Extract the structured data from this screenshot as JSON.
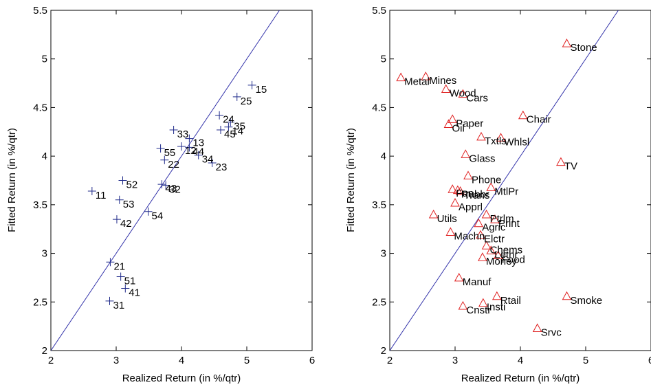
{
  "chart_data": [
    {
      "type": "scatter",
      "xlabel": "Realized Return (in %/qtr)",
      "ylabel": "Fitted Return (in %/qtr)",
      "xlim": [
        2,
        6
      ],
      "ylim": [
        2,
        5.5
      ],
      "xticks": [
        "2",
        "3",
        "4",
        "5",
        "6"
      ],
      "yticks": [
        "2",
        "2.5",
        "3",
        "3.5",
        "4",
        "4.5",
        "5",
        "5.5"
      ],
      "reference_line": "y = x",
      "marker": "plus",
      "marker_color": "#1f2a8a",
      "line_color": "#3333aa",
      "points": [
        {
          "label": "15",
          "x": 5.08,
          "y": 4.73
        },
        {
          "label": "25",
          "x": 4.85,
          "y": 4.61
        },
        {
          "label": "24",
          "x": 4.58,
          "y": 4.42
        },
        {
          "label": "35",
          "x": 4.75,
          "y": 4.35
        },
        {
          "label": "14",
          "x": 4.72,
          "y": 4.3
        },
        {
          "label": "45",
          "x": 4.6,
          "y": 4.27
        },
        {
          "label": "33",
          "x": 3.88,
          "y": 4.27
        },
        {
          "label": "13",
          "x": 4.12,
          "y": 4.18
        },
        {
          "label": "12",
          "x": 4.0,
          "y": 4.1
        },
        {
          "label": "44",
          "x": 4.12,
          "y": 4.09
        },
        {
          "label": "55",
          "x": 3.68,
          "y": 4.08
        },
        {
          "label": "34",
          "x": 4.26,
          "y": 4.01
        },
        {
          "label": "22",
          "x": 3.74,
          "y": 3.96
        },
        {
          "label": "23",
          "x": 4.47,
          "y": 3.93
        },
        {
          "label": "52",
          "x": 3.1,
          "y": 3.75
        },
        {
          "label": "43",
          "x": 3.7,
          "y": 3.71
        },
        {
          "label": "32",
          "x": 3.76,
          "y": 3.7
        },
        {
          "label": "11",
          "x": 2.63,
          "y": 3.64
        },
        {
          "label": "53",
          "x": 3.05,
          "y": 3.55
        },
        {
          "label": "54",
          "x": 3.49,
          "y": 3.43
        },
        {
          "label": "42",
          "x": 3.01,
          "y": 3.35
        },
        {
          "label": "21",
          "x": 2.91,
          "y": 2.91
        },
        {
          "label": "51",
          "x": 3.07,
          "y": 2.76
        },
        {
          "label": "41",
          "x": 3.14,
          "y": 2.64
        },
        {
          "label": "31",
          "x": 2.9,
          "y": 2.51
        }
      ]
    },
    {
      "type": "scatter",
      "xlabel": "Realized Return (in %/qtr)",
      "ylabel": "Fitted Return (in %/qtr)",
      "xlim": [
        2,
        6
      ],
      "ylim": [
        2,
        5.5
      ],
      "xticks": [
        "2",
        "3",
        "4",
        "5",
        "6"
      ],
      "yticks": [
        "2",
        "2.5",
        "3",
        "3.5",
        "4",
        "4.5",
        "5",
        "5.5"
      ],
      "reference_line": "y = x",
      "marker": "triangle",
      "marker_color": "#e02020",
      "line_color": "#3333aa",
      "points": [
        {
          "label": "Stone",
          "x": 4.71,
          "y": 5.16
        },
        {
          "label": "Metal",
          "x": 2.17,
          "y": 4.81
        },
        {
          "label": "Mines",
          "x": 2.55,
          "y": 4.82
        },
        {
          "label": "Wood",
          "x": 2.86,
          "y": 4.69
        },
        {
          "label": "Cars",
          "x": 3.12,
          "y": 4.64
        },
        {
          "label": "Chair",
          "x": 4.04,
          "y": 4.42
        },
        {
          "label": "Paper",
          "x": 2.96,
          "y": 4.38
        },
        {
          "label": "Oil",
          "x": 2.9,
          "y": 4.33
        },
        {
          "label": "Txtls",
          "x": 3.4,
          "y": 4.2
        },
        {
          "label": "Whlsl",
          "x": 3.7,
          "y": 4.19
        },
        {
          "label": "Glass",
          "x": 3.16,
          "y": 4.02
        },
        {
          "label": "TV",
          "x": 4.62,
          "y": 3.94
        },
        {
          "label": "Phone",
          "x": 3.2,
          "y": 3.8
        },
        {
          "label": "MtlPr",
          "x": 3.55,
          "y": 3.68
        },
        {
          "label": "Fun",
          "x": 2.96,
          "y": 3.66
        },
        {
          "label": "Rubbr",
          "x": 3.04,
          "y": 3.65
        },
        {
          "label": "Trans",
          "x": 3.08,
          "y": 3.64
        },
        {
          "label": "Apprl",
          "x": 3.0,
          "y": 3.52
        },
        {
          "label": "Utils",
          "x": 2.67,
          "y": 3.4
        },
        {
          "label": "Ptrlm",
          "x": 3.48,
          "y": 3.4
        },
        {
          "label": "Print",
          "x": 3.61,
          "y": 3.35
        },
        {
          "label": "Agric",
          "x": 3.36,
          "y": 3.31
        },
        {
          "label": "Machn",
          "x": 2.93,
          "y": 3.22
        },
        {
          "label": "Elctr",
          "x": 3.39,
          "y": 3.19
        },
        {
          "label": "Chems",
          "x": 3.48,
          "y": 3.08
        },
        {
          "label": "Lethr",
          "x": 3.55,
          "y": 3.03
        },
        {
          "label": "Money",
          "x": 3.42,
          "y": 2.96
        },
        {
          "label": "Food",
          "x": 3.66,
          "y": 2.98
        },
        {
          "label": "Manuf",
          "x": 3.06,
          "y": 2.75
        },
        {
          "label": "Rtail",
          "x": 3.64,
          "y": 2.56
        },
        {
          "label": "Smoke",
          "x": 4.71,
          "y": 2.56
        },
        {
          "label": "Insti",
          "x": 3.43,
          "y": 2.49
        },
        {
          "label": "Cnstr",
          "x": 3.12,
          "y": 2.46
        },
        {
          "label": "Srvc",
          "x": 4.26,
          "y": 2.23
        }
      ]
    }
  ]
}
